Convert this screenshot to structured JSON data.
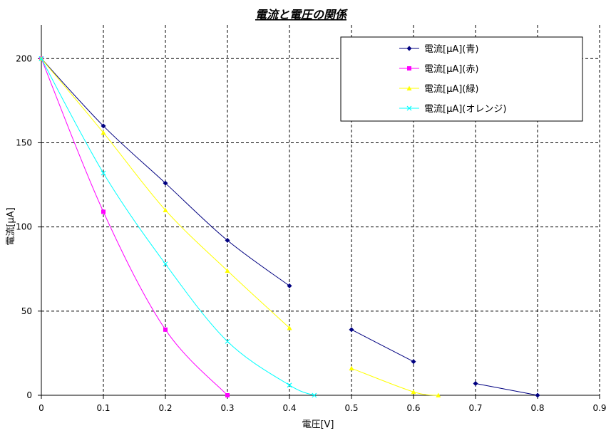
{
  "chart_data": {
    "type": "line",
    "title": "電流と電圧の関係",
    "xlabel": "電圧[V]",
    "ylabel": "電流[μA]",
    "xlim": [
      0,
      0.9
    ],
    "ylim": [
      0,
      220
    ],
    "x_ticks": [
      "0",
      "0.1",
      "0.2",
      "0.3",
      "0.4",
      "0.5",
      "0.6",
      "0.7",
      "0.8",
      "0.9"
    ],
    "y_ticks": [
      "0",
      "50",
      "100",
      "150",
      "200"
    ],
    "grid": true,
    "legend_position": "top-right",
    "series": [
      {
        "name": "電流[μA](青)",
        "color": "#000080",
        "marker": "diamond",
        "segments": [
          [
            [
              0,
              200
            ],
            [
              0.1,
              160
            ],
            [
              0.2,
              126
            ],
            [
              0.3,
              92
            ],
            [
              0.4,
              65
            ]
          ],
          [
            [
              0.5,
              39
            ],
            [
              0.6,
              20
            ]
          ],
          [
            [
              0.7,
              7
            ],
            [
              0.8,
              0
            ]
          ]
        ]
      },
      {
        "name": "電流[μA](赤)",
        "color": "#ff00ff",
        "marker": "square",
        "segments": [
          [
            [
              0,
              200
            ],
            [
              0.1,
              109
            ],
            [
              0.2,
              39
            ],
            [
              0.3,
              0
            ]
          ]
        ]
      },
      {
        "name": "電流[μA](緑)",
        "color": "#ffff00",
        "marker": "triangle",
        "segments": [
          [
            [
              0,
              200
            ],
            [
              0.1,
              156
            ],
            [
              0.2,
              110
            ],
            [
              0.3,
              74
            ],
            [
              0.4,
              40
            ]
          ],
          [
            [
              0.5,
              16
            ],
            [
              0.6,
              2
            ],
            [
              0.64,
              0
            ]
          ]
        ]
      },
      {
        "name": "電流[μA](オレンジ)",
        "color": "#00ffff",
        "marker": "x",
        "segments": [
          [
            [
              0,
              200
            ],
            [
              0.1,
              132
            ],
            [
              0.2,
              78
            ],
            [
              0.3,
              32
            ],
            [
              0.4,
              6
            ],
            [
              0.44,
              0
            ]
          ]
        ]
      }
    ]
  }
}
